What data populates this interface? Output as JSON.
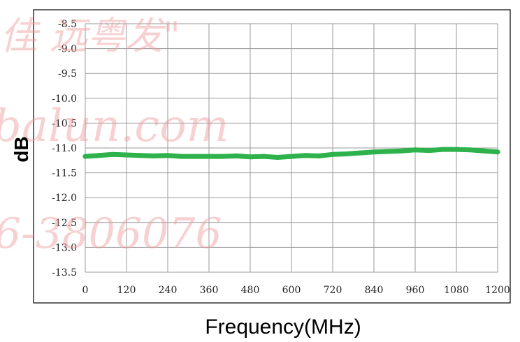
{
  "chart_data": {
    "type": "line",
    "title": "",
    "xlabel": "Frequency(MHz)",
    "ylabel": "dB",
    "xlim": [
      0,
      1200
    ],
    "ylim": [
      -13.5,
      -8.5
    ],
    "x_ticks": [
      "0",
      "120",
      "240",
      "360",
      "480",
      "600",
      "720",
      "840",
      "960",
      "1080",
      "1200"
    ],
    "y_ticks": [
      "-8.5",
      "-9.0",
      "-9.5",
      "-10.0",
      "-10.5",
      "-11.0",
      "-11.5",
      "-12.0",
      "-12.5",
      "-13.0",
      "-13.5"
    ],
    "grid": true,
    "legend": "none",
    "series": [
      {
        "color": "#2eb24c",
        "points": [
          [
            0,
            -11.17
          ],
          [
            40,
            -11.15
          ],
          [
            80,
            -11.13
          ],
          [
            120,
            -11.14
          ],
          [
            160,
            -11.15
          ],
          [
            200,
            -11.16
          ],
          [
            240,
            -11.15
          ],
          [
            280,
            -11.17
          ],
          [
            320,
            -11.17
          ],
          [
            360,
            -11.17
          ],
          [
            400,
            -11.17
          ],
          [
            440,
            -11.16
          ],
          [
            480,
            -11.18
          ],
          [
            520,
            -11.17
          ],
          [
            560,
            -11.19
          ],
          [
            600,
            -11.17
          ],
          [
            640,
            -11.15
          ],
          [
            680,
            -11.16
          ],
          [
            720,
            -11.13
          ],
          [
            760,
            -11.12
          ],
          [
            800,
            -11.1
          ],
          [
            840,
            -11.08
          ],
          [
            880,
            -11.07
          ],
          [
            920,
            -11.06
          ],
          [
            960,
            -11.04
          ],
          [
            1000,
            -11.05
          ],
          [
            1040,
            -11.03
          ],
          [
            1080,
            -11.03
          ],
          [
            1120,
            -11.04
          ],
          [
            1160,
            -11.06
          ],
          [
            1200,
            -11.08
          ]
        ]
      }
    ]
  },
  "watermark": {
    "line1": "佳 远粤发\"",
    "line2": "balun.com",
    "line3": "6-3806076"
  }
}
